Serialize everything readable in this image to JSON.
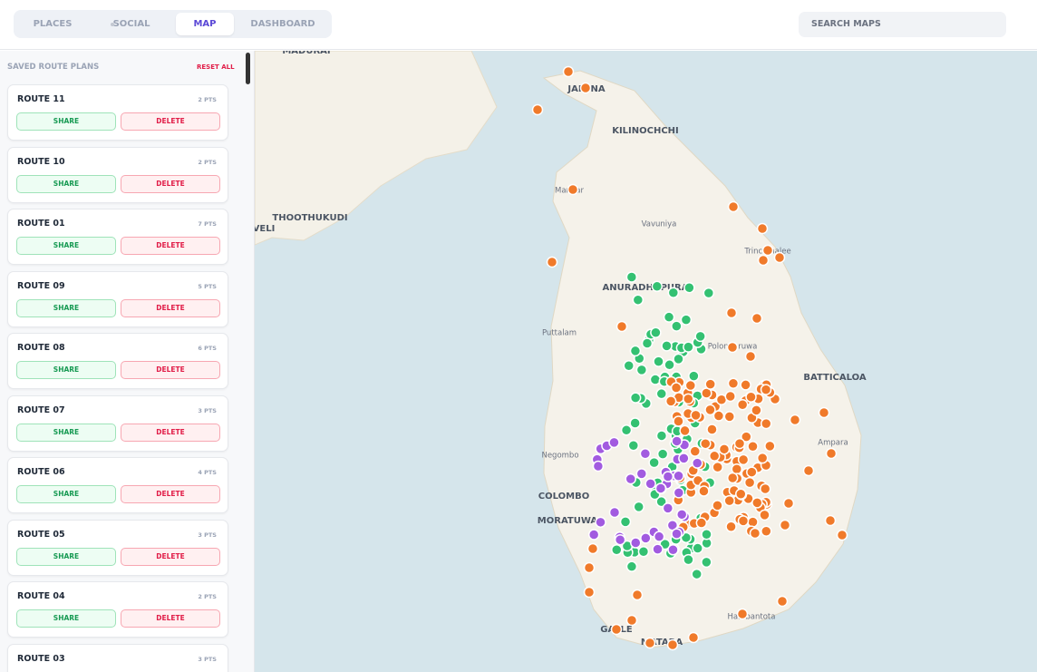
{
  "nav": {
    "tabs": [
      "PLACES",
      "SOCIAL",
      "MAP",
      "DASHBOARD"
    ],
    "search_placeholder": "SEARCH MAPS"
  },
  "sidebar": {
    "title": "SAVED ROUTE PLANS",
    "reset": "RESET ALL",
    "share": "SHARE",
    "delete": "DELETE",
    "routes": [
      {
        "name": "ROUTE 11",
        "points": "2 PTS"
      },
      {
        "name": "ROUTE 10",
        "points": "2 PTS"
      },
      {
        "name": "ROUTE 01",
        "points": "7 PTS"
      },
      {
        "name": "ROUTE 09",
        "points": "5 PTS"
      },
      {
        "name": "ROUTE 08",
        "points": "6 PTS"
      },
      {
        "name": "ROUTE 07",
        "points": "3 PTS"
      },
      {
        "name": "ROUTE 06",
        "points": "4 PTS"
      },
      {
        "name": "ROUTE 05",
        "points": "3 PTS"
      },
      {
        "name": "ROUTE 04",
        "points": "2 PTS"
      },
      {
        "name": "ROUTE 03",
        "points": "3 PTS"
      }
    ]
  },
  "map": {
    "labels": [
      "MADURAI",
      "JAFFNA",
      "KILINOCHCHI",
      "Mannar",
      "THOOTHUKUDI",
      "VELI",
      "Vavuniya",
      "Trincomalee",
      "ANURADHAPURA",
      "Puttalam",
      "Polonnaruwa",
      "BATTICALOA",
      "Negombo",
      "COLOMBO",
      "MORATUWA",
      "Ampara",
      "Hambantota",
      "GALLE",
      "MATARA"
    ]
  }
}
